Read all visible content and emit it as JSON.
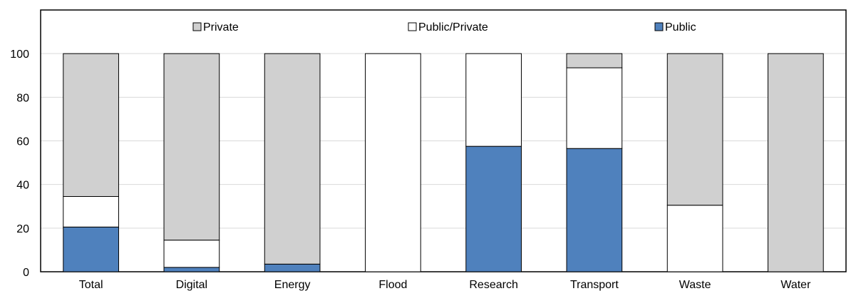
{
  "chart_data": {
    "type": "bar",
    "stacked": true,
    "categories": [
      "Total",
      "Digital",
      "Energy",
      "Flood",
      "Research",
      "Transport",
      "Waste",
      "Water"
    ],
    "series": [
      {
        "name": "Public",
        "color": "#4f81bd",
        "values": [
          20.5,
          2,
          3.5,
          0,
          57.5,
          56.5,
          0,
          0
        ]
      },
      {
        "name": "Public/Private",
        "color": "#ffffff",
        "values": [
          14,
          12.5,
          0,
          100,
          42.5,
          37,
          30.5,
          0
        ]
      },
      {
        "name": "Private",
        "color": "#d0d0d0",
        "values": [
          65.5,
          85.5,
          96.5,
          0,
          0,
          6.5,
          69.5,
          100
        ]
      }
    ],
    "legend_order": [
      "Private",
      "Public/Private",
      "Public"
    ],
    "yticks": [
      0,
      20,
      40,
      60,
      80,
      100
    ],
    "ylim": [
      0,
      120
    ],
    "grid": true,
    "legend_position": "top"
  }
}
